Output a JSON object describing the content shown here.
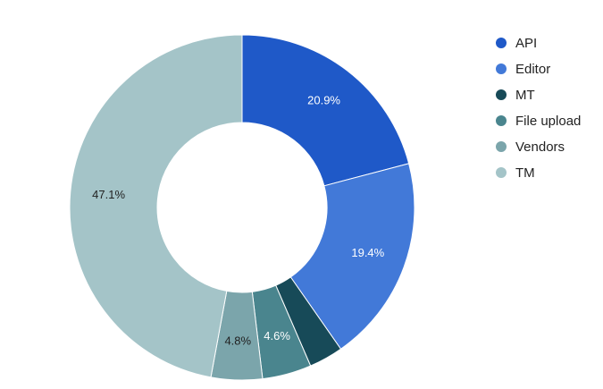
{
  "chart_data": {
    "type": "pie",
    "donut": true,
    "categories": [
      "API",
      "Editor",
      "MT",
      "File upload",
      "Vendors",
      "TM"
    ],
    "values": [
      20.9,
      19.4,
      3.2,
      4.6,
      4.8,
      47.1
    ],
    "data_labels": [
      "20.9%",
      "19.4%",
      "",
      "4.6%",
      "4.8%",
      "47.1%"
    ],
    "colors": [
      "#1f59c8",
      "#4279d8",
      "#174a58",
      "#4a858e",
      "#7ba5ab",
      "#a4c4c8"
    ],
    "label_colors": [
      "#ffffff",
      "#ffffff",
      "#ffffff",
      "#ffffff",
      "#222222",
      "#222222"
    ],
    "legend_position": "right"
  }
}
